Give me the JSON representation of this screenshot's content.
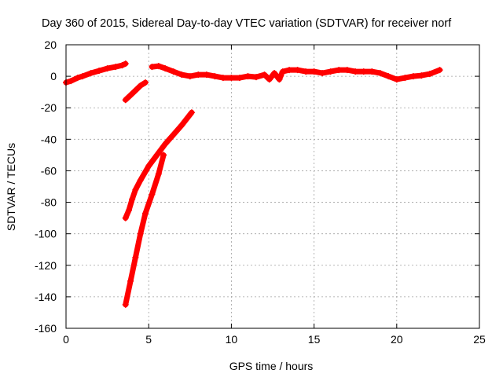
{
  "chart_data": {
    "type": "scatter",
    "title": "Day 360 of 2015, Sidereal Day-to-day VTEC variation (SDTVAR) for receiver norf",
    "xlabel": "GPS time / hours",
    "ylabel": "SDTVAR / TECUs",
    "xlim": [
      0,
      25
    ],
    "ylim": [
      -160,
      20
    ],
    "xticks": [
      0,
      5,
      10,
      15,
      20,
      25
    ],
    "yticks": [
      -160,
      -140,
      -120,
      -100,
      -80,
      -60,
      -40,
      -20,
      0,
      20
    ],
    "grid": true,
    "marker": "+",
    "series": [
      {
        "color": "#ff0000",
        "segments": [
          [
            [
              0.0,
              -4
            ],
            [
              0.3,
              -3
            ],
            [
              0.7,
              -1
            ],
            [
              1.0,
              0
            ],
            [
              1.5,
              2
            ],
            [
              2.0,
              3.5
            ],
            [
              2.5,
              5
            ],
            [
              3.0,
              6
            ],
            [
              3.4,
              7
            ],
            [
              3.6,
              8
            ]
          ],
          [
            [
              3.6,
              -15
            ],
            [
              3.9,
              -12
            ],
            [
              4.2,
              -9
            ],
            [
              4.5,
              -6
            ],
            [
              4.8,
              -4
            ]
          ],
          [
            [
              5.2,
              6
            ],
            [
              5.6,
              6.5
            ],
            [
              6.0,
              5
            ],
            [
              6.5,
              3
            ],
            [
              7.0,
              1
            ],
            [
              7.5,
              0
            ],
            [
              8.0,
              1
            ],
            [
              8.5,
              1
            ],
            [
              9.0,
              0
            ],
            [
              9.5,
              -1
            ],
            [
              10.0,
              -1
            ],
            [
              10.5,
              -1
            ],
            [
              11.0,
              0
            ],
            [
              11.5,
              -0.5
            ],
            [
              12.0,
              1
            ],
            [
              12.3,
              -2
            ],
            [
              12.6,
              2
            ],
            [
              12.9,
              -2
            ],
            [
              13.1,
              3
            ],
            [
              13.5,
              4
            ],
            [
              14.0,
              4
            ],
            [
              14.5,
              3
            ],
            [
              15.0,
              3
            ],
            [
              15.5,
              2
            ],
            [
              16.0,
              3
            ],
            [
              16.5,
              4
            ],
            [
              17.0,
              4
            ],
            [
              17.5,
              3
            ],
            [
              18.0,
              3
            ],
            [
              18.5,
              3
            ],
            [
              19.0,
              2
            ],
            [
              19.5,
              0
            ],
            [
              20.0,
              -2
            ],
            [
              20.5,
              -1
            ],
            [
              21.0,
              0
            ],
            [
              21.5,
              0.5
            ],
            [
              22.0,
              1.5
            ],
            [
              22.6,
              4
            ]
          ],
          [
            [
              3.6,
              -90
            ],
            [
              3.8,
              -85
            ],
            [
              4.0,
              -78
            ],
            [
              4.2,
              -72
            ],
            [
              4.5,
              -66
            ],
            [
              5.0,
              -57
            ],
            [
              5.5,
              -50
            ],
            [
              6.0,
              -43
            ],
            [
              6.5,
              -37
            ],
            [
              7.0,
              -31
            ],
            [
              7.6,
              -23
            ]
          ],
          [
            [
              3.6,
              -145
            ],
            [
              3.9,
              -130
            ],
            [
              4.2,
              -115
            ],
            [
              4.5,
              -100
            ],
            [
              4.8,
              -87
            ],
            [
              5.2,
              -75
            ],
            [
              5.6,
              -62
            ],
            [
              5.9,
              -50
            ]
          ]
        ]
      }
    ]
  }
}
